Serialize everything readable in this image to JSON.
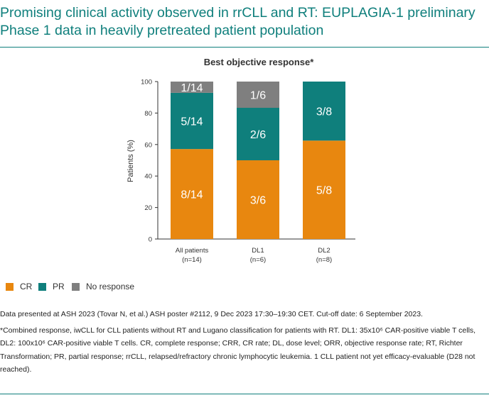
{
  "title": "Promising clinical activity observed in rrCLL and RT: EUPLAGIA-1 preliminary Phase 1 data in heavily pretreated patient population",
  "colors": {
    "CR": "#e8870f",
    "PR": "#0f7f7c",
    "NR": "#7f7f7f",
    "accent": "#0f7f7c"
  },
  "chart_data": {
    "type": "bar",
    "stacked": true,
    "title": "Best objective response*",
    "ylabel": "Patients (%)",
    "ylim": [
      0,
      100
    ],
    "yticks": [
      "0",
      "20",
      "40",
      "60",
      "80",
      "100"
    ],
    "categories": [
      {
        "name": "All patients",
        "n": "(n=14)"
      },
      {
        "name": "DL1",
        "n": "(n=6)"
      },
      {
        "name": "DL2",
        "n": "(n=8)"
      }
    ],
    "series": [
      {
        "name": "CR",
        "color": "#e8870f",
        "values": [
          57.14,
          50,
          62.5
        ],
        "labels": [
          "8/14",
          "3/6",
          "5/8"
        ]
      },
      {
        "name": "PR",
        "color": "#0f7f7c",
        "values": [
          35.71,
          33.33,
          37.5
        ],
        "labels": [
          "5/14",
          "2/6",
          "3/8"
        ]
      },
      {
        "name": "No response",
        "color": "#7f7f7f",
        "values": [
          7.14,
          16.67,
          0
        ],
        "labels": [
          "1/14",
          "1/6",
          ""
        ]
      }
    ]
  },
  "legend": [
    {
      "label": "CR",
      "color": "#e8870f"
    },
    {
      "label": "PR",
      "color": "#0f7f7c"
    },
    {
      "label": "No response",
      "color": "#7f7f7f"
    }
  ],
  "footnotes": {
    "source": "Data presented at ASH 2023 (Tovar N, et al.) ASH poster #2112, 9 Dec 2023 17:30–19:30 CET. Cut-off date: 6 September 2023.",
    "definitions": "*Combined response, iwCLL for CLL patients without RT and Lugano classification for patients with RT. DL1: 35x10⁶ CAR-positive viable T cells, DL2: 100x10⁶ CAR-positive viable T cells. CR, complete response; CRR, CR rate; DL, dose level; ORR, objective response rate; RT, Richter Transformation; PR, partial response; rrCLL, relapsed/refractory chronic lymphocytic leukemia. 1 CLL patient not yet efficacy-evaluable (D28 not reached)."
  }
}
